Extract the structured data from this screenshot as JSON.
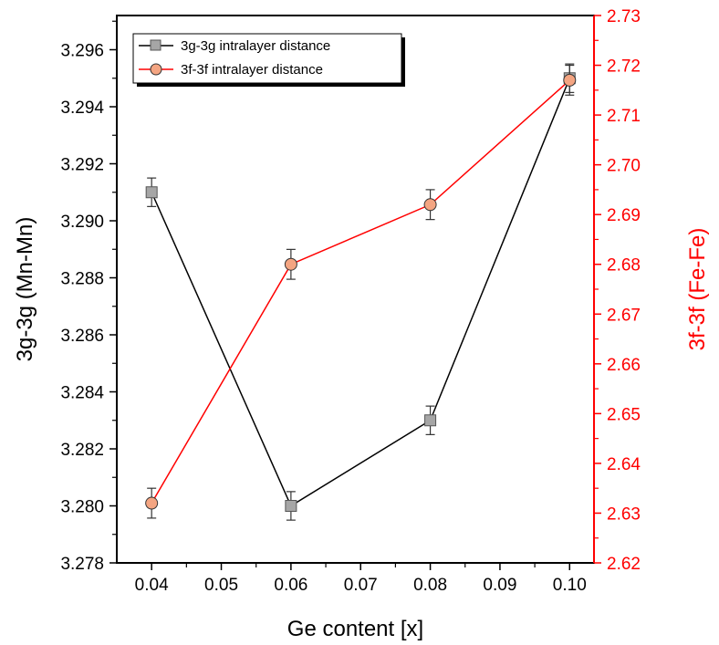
{
  "chart_data": {
    "type": "line",
    "xlabel": "Ge content [x]",
    "ylabel_left": "3g-3g (Mn-Mn)",
    "ylabel_right": "3f-3f (Fe-Fe)",
    "xlim": [
      0.035,
      0.1035
    ],
    "xticks": [
      "0.04",
      "0.05",
      "0.06",
      "0.07",
      "0.08",
      "0.09",
      "0.10"
    ],
    "xtick_values": [
      0.04,
      0.05,
      0.06,
      0.07,
      0.08,
      0.09,
      0.1
    ],
    "ylim_left": [
      3.278,
      3.2972
    ],
    "yticks_left": [
      "3.278",
      "3.280",
      "3.282",
      "3.284",
      "3.286",
      "3.288",
      "3.290",
      "3.292",
      "3.294",
      "3.296"
    ],
    "ytick_values_left": [
      3.278,
      3.28,
      3.282,
      3.284,
      3.286,
      3.288,
      3.29,
      3.292,
      3.294,
      3.296
    ],
    "ylim_right": [
      2.62,
      2.73
    ],
    "yticks_right": [
      "2.62",
      "2.63",
      "2.64",
      "2.65",
      "2.66",
      "2.67",
      "2.68",
      "2.69",
      "2.70",
      "2.71",
      "2.72",
      "2.73"
    ],
    "ytick_values_right": [
      2.62,
      2.63,
      2.64,
      2.65,
      2.66,
      2.67,
      2.68,
      2.69,
      2.7,
      2.71,
      2.72,
      2.73
    ],
    "grid": false,
    "legend_position": "top-left",
    "series": [
      {
        "name": "3g-3g intralayer distance",
        "axis": "left",
        "marker": "square",
        "color": "#000000",
        "marker_fill": "#a6a6a6",
        "x": [
          0.04,
          0.06,
          0.08,
          0.1
        ],
        "y": [
          3.291,
          3.28,
          3.283,
          3.295
        ],
        "error": [
          0.0005,
          0.0005,
          0.0005,
          0.0005
        ]
      },
      {
        "name": "3f-3f intralayer distance",
        "axis": "right",
        "marker": "circle",
        "color": "#ff0000",
        "marker_fill": "#f4a582",
        "x": [
          0.04,
          0.06,
          0.08,
          0.1
        ],
        "y": [
          2.632,
          2.68,
          2.692,
          2.717
        ],
        "error": [
          0.003,
          0.003,
          0.003,
          0.003
        ]
      }
    ]
  },
  "colors": {
    "left_axis": "#000000",
    "right_axis": "#ff0000"
  }
}
